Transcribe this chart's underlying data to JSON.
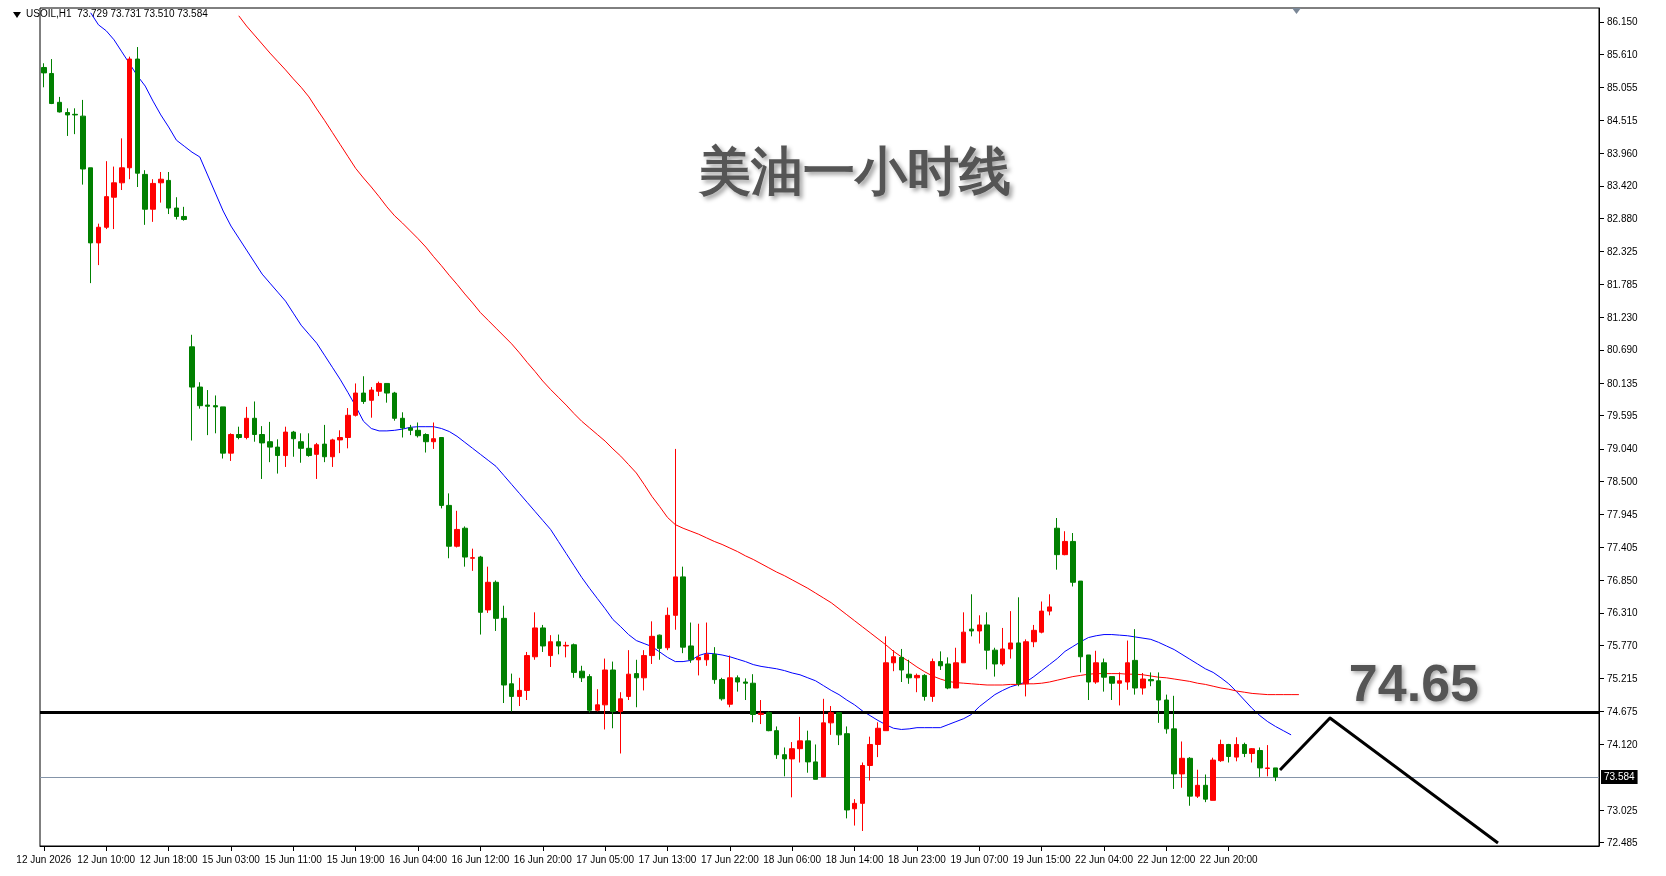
{
  "chart_data": {
    "type": "candlestick",
    "title": "美油一小时线",
    "annotations": [
      "USOIL,H1  73.729 73.731 73.510 73.584"
    ],
    "categories": [
      "12 Jun 2026",
      null,
      null,
      null,
      null,
      null,
      null,
      null,
      "12 Jun 10:00",
      null,
      null,
      null,
      null,
      null,
      null,
      null,
      "12 Jun 18:00",
      null,
      null,
      null,
      null,
      null,
      null,
      null,
      "15 Jun 03:00",
      null,
      null,
      null,
      null,
      null,
      null,
      null,
      "15 Jun 11:00",
      null,
      null,
      null,
      null,
      null,
      null,
      null,
      "15 Jun 19:00",
      null,
      null,
      null,
      null,
      null,
      null,
      null,
      "16 Jun 04:00",
      null,
      null,
      null,
      null,
      null,
      null,
      null,
      "16 Jun 12:00",
      null,
      null,
      null,
      null,
      null,
      null,
      null,
      "16 Jun 20:00",
      null,
      null,
      null,
      null,
      null,
      null,
      null,
      "17 Jun 05:00",
      null,
      null,
      null,
      null,
      null,
      null,
      null,
      "17 Jun 13:00",
      null,
      null,
      null,
      null,
      null,
      null,
      null,
      "17 Jun 22:00",
      null,
      null,
      null,
      null,
      null,
      null,
      null,
      "18 Jun 06:00",
      null,
      null,
      null,
      null,
      null,
      null,
      null,
      "18 Jun 14:00",
      null,
      null,
      null,
      null,
      null,
      null,
      null,
      "18 Jun 23:00",
      null,
      null,
      null,
      null,
      null,
      null,
      null,
      "19 Jun 07:00",
      null,
      null,
      null,
      null,
      null,
      null,
      null,
      "19 Jun 15:00",
      null,
      null,
      null,
      null,
      null,
      null,
      null,
      "22 Jun 04:00",
      null,
      null,
      null,
      null,
      null,
      null,
      null,
      "22 Jun 12:00",
      null,
      null,
      null,
      null,
      null,
      null,
      null,
      "22 Jun 20:00",
      null,
      null,
      null,
      null,
      null,
      null,
      null,
      null,
      null,
      null,
      null,
      null,
      null,
      null,
      null,
      null,
      null,
      null,
      null,
      null,
      null,
      null,
      null,
      null,
      null,
      null,
      null,
      null,
      null,
      null,
      null,
      null,
      null,
      null,
      null,
      null,
      null,
      null,
      null,
      null,
      null,
      null,
      null,
      null,
      null,
      null,
      null
    ],
    "ohlc": [
      [
        85.39,
        85.46,
        85.06,
        85.3
      ],
      [
        85.29,
        85.53,
        84.78,
        84.79
      ],
      [
        84.81,
        84.9,
        84.64,
        84.65
      ],
      [
        84.64,
        84.71,
        84.25,
        84.6
      ],
      [
        84.61,
        84.71,
        84.28,
        84.6
      ],
      [
        84.58,
        84.85,
        83.44,
        83.7
      ],
      [
        83.72,
        83.72,
        81.8,
        82.47
      ],
      [
        82.47,
        82.79,
        82.1,
        82.73
      ],
      [
        82.73,
        83.83,
        82.7,
        83.24
      ],
      [
        83.23,
        83.74,
        82.7,
        83.47
      ],
      [
        83.47,
        84.21,
        83.35,
        83.72
      ],
      [
        83.72,
        85.57,
        83.53,
        85.53
      ],
      [
        85.53,
        85.73,
        83.4,
        83.63
      ],
      [
        83.61,
        83.68,
        82.77,
        83.03
      ],
      [
        83.03,
        83.53,
        82.82,
        83.46
      ],
      [
        83.47,
        83.65,
        83.14,
        83.53
      ],
      [
        83.51,
        83.65,
        82.95,
        83.05
      ],
      [
        83.05,
        83.23,
        82.86,
        82.91
      ],
      [
        82.91,
        83.07,
        82.84,
        82.86
      ],
      [
        80.74,
        80.94,
        79.18,
        80.07
      ],
      [
        80.07,
        80.15,
        79.71,
        79.76
      ],
      [
        79.77,
        80.02,
        79.27,
        79.75
      ],
      [
        79.76,
        79.93,
        79.3,
        79.74
      ],
      [
        79.74,
        79.74,
        78.88,
        78.97
      ],
      [
        78.97,
        79.3,
        78.84,
        79.28
      ],
      [
        79.28,
        79.41,
        79.2,
        79.23
      ],
      [
        79.23,
        79.74,
        79.2,
        79.55
      ],
      [
        79.55,
        79.83,
        79.16,
        79.28
      ],
      [
        79.28,
        79.42,
        78.54,
        79.14
      ],
      [
        79.16,
        79.49,
        78.82,
        79.07
      ],
      [
        79.07,
        79.2,
        78.63,
        78.93
      ],
      [
        78.93,
        79.41,
        78.74,
        79.32
      ],
      [
        79.32,
        79.34,
        78.91,
        79.21
      ],
      [
        79.16,
        79.3,
        78.81,
        79.05
      ],
      [
        79.05,
        79.3,
        78.91,
        78.93
      ],
      [
        78.95,
        79.14,
        78.54,
        79.11
      ],
      [
        79.12,
        79.44,
        78.82,
        78.91
      ],
      [
        78.91,
        79.21,
        78.74,
        79.19
      ],
      [
        79.19,
        79.35,
        78.97,
        79.23
      ],
      [
        79.23,
        79.72,
        79.05,
        79.6
      ],
      [
        79.6,
        80.13,
        79.58,
        79.97
      ],
      [
        79.97,
        80.25,
        79.79,
        79.83
      ],
      [
        79.85,
        80.07,
        79.56,
        80.02
      ],
      [
        80.0,
        80.16,
        79.92,
        80.13
      ],
      [
        80.13,
        80.13,
        79.81,
        79.97
      ],
      [
        79.97,
        79.99,
        79.51,
        79.55
      ],
      [
        79.55,
        79.65,
        79.23,
        79.39
      ],
      [
        79.39,
        79.44,
        79.27,
        79.35
      ],
      [
        79.35,
        79.48,
        79.23,
        79.26
      ],
      [
        79.28,
        79.3,
        78.98,
        79.16
      ],
      [
        79.16,
        79.48,
        79.04,
        79.21
      ],
      [
        79.23,
        79.23,
        78.05,
        78.1
      ],
      [
        78.1,
        78.3,
        77.22,
        77.42
      ],
      [
        77.42,
        78.01,
        77.4,
        77.7
      ],
      [
        77.72,
        77.75,
        77.08,
        77.24
      ],
      [
        77.22,
        77.38,
        77.01,
        77.23
      ],
      [
        77.24,
        77.26,
        75.95,
        76.32
      ],
      [
        76.36,
        77.08,
        76.31,
        76.82
      ],
      [
        76.82,
        76.85,
        76.01,
        76.22
      ],
      [
        76.22,
        76.43,
        74.81,
        75.11
      ],
      [
        75.13,
        75.3,
        74.67,
        74.92
      ],
      [
        74.92,
        75.23,
        74.76,
        75.02
      ],
      [
        75.02,
        75.66,
        74.86,
        75.6
      ],
      [
        75.58,
        76.32,
        75.53,
        76.06
      ],
      [
        76.06,
        76.11,
        75.66,
        75.76
      ],
      [
        75.6,
        75.94,
        75.41,
        75.83
      ],
      [
        75.83,
        75.95,
        75.62,
        75.76
      ],
      [
        75.76,
        75.83,
        75.57,
        75.77
      ],
      [
        75.78,
        75.8,
        75.23,
        75.32
      ],
      [
        75.34,
        75.43,
        75.16,
        75.23
      ],
      [
        75.25,
        75.29,
        74.65,
        74.69
      ],
      [
        74.69,
        75.04,
        74.67,
        74.78
      ],
      [
        74.78,
        75.55,
        74.37,
        75.36
      ],
      [
        75.36,
        75.5,
        74.39,
        74.67
      ],
      [
        74.67,
        74.99,
        73.97,
        74.88
      ],
      [
        74.92,
        75.69,
        74.86,
        75.29
      ],
      [
        75.3,
        75.53,
        74.74,
        75.23
      ],
      [
        75.23,
        75.69,
        75.02,
        75.6
      ],
      [
        75.6,
        76.17,
        75.46,
        75.92
      ],
      [
        75.94,
        75.95,
        75.53,
        75.72
      ],
      [
        75.73,
        76.4,
        75.69,
        76.27
      ],
      [
        76.27,
        79.04,
        76.03,
        76.91
      ],
      [
        76.91,
        77.08,
        75.64,
        75.74
      ],
      [
        75.76,
        76.15,
        75.48,
        75.53
      ],
      [
        75.53,
        76.13,
        75.27,
        75.57
      ],
      [
        75.53,
        76.15,
        75.43,
        75.62
      ],
      [
        75.62,
        75.74,
        75.13,
        75.2
      ],
      [
        75.2,
        75.23,
        74.85,
        74.88
      ],
      [
        74.79,
        75.6,
        74.74,
        75.23
      ],
      [
        75.23,
        75.27,
        75.0,
        75.16
      ],
      [
        75.16,
        75.22,
        74.86,
        75.14
      ],
      [
        75.14,
        75.29,
        74.49,
        74.62
      ],
      [
        74.62,
        74.86,
        74.46,
        74.64
      ],
      [
        74.65,
        74.67,
        74.34,
        74.35
      ],
      [
        74.35,
        74.42,
        73.88,
        73.95
      ],
      [
        73.95,
        74.07,
        73.59,
        73.88
      ],
      [
        73.88,
        74.16,
        73.24,
        74.05
      ],
      [
        74.05,
        74.58,
        73.82,
        74.18
      ],
      [
        74.18,
        74.35,
        73.65,
        73.83
      ],
      [
        73.83,
        74.12,
        73.54,
        73.54
      ],
      [
        73.58,
        74.88,
        73.58,
        74.48
      ],
      [
        74.48,
        74.76,
        74.28,
        74.65
      ],
      [
        74.65,
        74.65,
        74.11,
        74.28
      ],
      [
        74.3,
        74.42,
        72.89,
        73.03
      ],
      [
        73.05,
        73.21,
        72.77,
        73.14
      ],
      [
        73.14,
        73.82,
        72.68,
        73.77
      ],
      [
        73.77,
        74.25,
        73.52,
        74.12
      ],
      [
        74.12,
        74.49,
        73.91,
        74.39
      ],
      [
        74.35,
        75.92,
        74.35,
        75.48
      ],
      [
        75.48,
        75.69,
        75.34,
        75.58
      ],
      [
        75.57,
        75.71,
        75.16,
        75.36
      ],
      [
        75.29,
        75.53,
        75.13,
        75.23
      ],
      [
        75.23,
        75.3,
        74.99,
        75.27
      ],
      [
        75.27,
        75.29,
        74.85,
        74.92
      ],
      [
        74.92,
        75.55,
        74.83,
        75.5
      ],
      [
        75.5,
        75.67,
        75.36,
        75.43
      ],
      [
        75.46,
        75.57,
        75.04,
        75.06
      ],
      [
        75.06,
        75.73,
        75.06,
        75.48
      ],
      [
        75.48,
        76.32,
        75.48,
        75.99
      ],
      [
        76.04,
        76.62,
        75.92,
        76.01
      ],
      [
        76.01,
        76.27,
        75.8,
        76.11
      ],
      [
        76.11,
        76.32,
        75.37,
        75.69
      ],
      [
        75.69,
        75.73,
        75.25,
        75.46
      ],
      [
        75.46,
        76.06,
        75.43,
        75.71
      ],
      [
        75.71,
        76.34,
        75.55,
        75.81
      ],
      [
        75.81,
        76.57,
        75.09,
        75.13
      ],
      [
        75.13,
        75.87,
        74.92,
        75.83
      ],
      [
        75.83,
        76.11,
        75.74,
        76.02
      ],
      [
        75.99,
        76.5,
        75.97,
        76.34
      ],
      [
        76.34,
        76.62,
        76.27,
        76.41
      ],
      [
        77.72,
        77.89,
        77.03,
        77.28
      ],
      [
        77.28,
        77.67,
        77.27,
        77.5
      ],
      [
        77.5,
        77.64,
        76.75,
        76.82
      ],
      [
        76.84,
        76.84,
        75.32,
        75.58
      ],
      [
        75.61,
        75.61,
        74.86,
        75.16
      ],
      [
        75.16,
        75.68,
        75.13,
        75.48
      ],
      [
        75.48,
        75.55,
        75.0,
        75.24
      ],
      [
        75.25,
        75.25,
        74.86,
        75.14
      ],
      [
        75.14,
        75.32,
        74.77,
        75.18
      ],
      [
        75.16,
        75.85,
        75.03,
        75.48
      ],
      [
        75.52,
        76.04,
        74.95,
        75.06
      ],
      [
        75.06,
        75.31,
        74.95,
        75.21
      ],
      [
        75.2,
        75.32,
        75.09,
        75.18
      ],
      [
        75.18,
        75.32,
        74.48,
        74.86
      ],
      [
        74.86,
        74.95,
        74.3,
        74.38
      ],
      [
        74.38,
        74.93,
        73.38,
        73.63
      ],
      [
        73.63,
        74.17,
        73.4,
        73.89
      ],
      [
        73.89,
        73.91,
        73.1,
        73.26
      ],
      [
        73.26,
        73.7,
        73.23,
        73.44
      ],
      [
        73.44,
        73.62,
        73.16,
        73.21
      ],
      [
        73.19,
        73.9,
        73.19,
        73.86
      ],
      [
        73.85,
        74.2,
        73.83,
        74.12
      ],
      [
        74.12,
        74.13,
        73.82,
        73.92
      ],
      [
        73.91,
        74.24,
        73.84,
        74.12
      ],
      [
        74.12,
        74.15,
        73.91,
        73.97
      ],
      [
        73.97,
        74.06,
        73.82,
        74.05
      ],
      [
        74.02,
        74.07,
        73.58,
        73.73
      ],
      [
        73.72,
        74.11,
        73.59,
        73.73
      ],
      [
        73.73,
        73.73,
        73.51,
        73.58
      ],
      null,
      null,
      null,
      null,
      null,
      null,
      null,
      null,
      null,
      null,
      null,
      null,
      null,
      null,
      null,
      null,
      null,
      null,
      null,
      null,
      null,
      null,
      null,
      null,
      null,
      null,
      null,
      null,
      null,
      null,
      null,
      null,
      null,
      null,
      null,
      null,
      null,
      null,
      null,
      null,
      null
    ],
    "colors": [
      "#008000",
      "#008000",
      "#008000",
      "#008000",
      "#008000",
      "#008000",
      "#008000",
      "#ff0000",
      "#ff0000",
      "#ff0000",
      "#ff0000",
      "#ff0000",
      "#008000",
      "#008000",
      "#ff0000",
      "#ff0000",
      "#008000",
      "#008000",
      "#008000",
      "#008000",
      "#008000",
      "#008000",
      "#008000",
      "#008000",
      "#ff0000",
      "#008000",
      "#ff0000",
      "#008000",
      "#008000",
      "#008000",
      "#008000",
      "#ff0000",
      "#008000",
      "#008000",
      "#008000",
      "#ff0000",
      "#008000",
      "#ff0000",
      "#ff0000",
      "#ff0000",
      "#ff0000",
      "#008000",
      "#ff0000",
      "#ff0000",
      "#008000",
      "#008000",
      "#008000",
      "#008000",
      "#008000",
      "#008000",
      "#ff0000",
      "#008000",
      "#008000",
      "#ff0000",
      "#008000",
      "#ff0000",
      "#008000",
      "#ff0000",
      "#008000",
      "#008000",
      "#008000",
      "#ff0000",
      "#ff0000",
      "#ff0000",
      "#008000",
      "#ff0000",
      "#008000",
      "#ff0000",
      "#008000",
      "#008000",
      "#008000",
      "#ff0000",
      "#ff0000",
      "#008000",
      "#ff0000",
      "#ff0000",
      "#008000",
      "#ff0000",
      "#ff0000",
      "#008000",
      "#ff0000",
      "#ff0000",
      "#008000",
      "#008000",
      "#ff0000",
      "#ff0000",
      "#008000",
      "#008000",
      "#ff0000",
      "#008000",
      "#008000",
      "#008000",
      "#ff0000",
      "#008000",
      "#008000",
      "#008000",
      "#ff0000",
      "#ff0000",
      "#008000",
      "#008000",
      "#ff0000",
      "#ff0000",
      "#008000",
      "#008000",
      "#ff0000",
      "#ff0000",
      "#ff0000",
      "#ff0000",
      "#ff0000",
      "#ff0000",
      "#008000",
      "#008000",
      "#ff0000",
      "#008000",
      "#ff0000",
      "#008000",
      "#008000",
      "#ff0000",
      "#ff0000",
      "#008000",
      "#ff0000",
      "#008000",
      "#008000",
      "#ff0000",
      "#ff0000",
      "#008000",
      "#ff0000",
      "#ff0000",
      "#ff0000",
      "#ff0000",
      "#008000",
      "#ff0000",
      "#008000",
      "#008000",
      "#008000",
      "#ff0000",
      "#008000",
      "#008000",
      "#ff0000",
      "#ff0000",
      "#008000",
      "#ff0000",
      "#008000",
      "#008000",
      "#008000",
      "#008000",
      "#ff0000",
      "#008000",
      "#ff0000",
      "#008000",
      "#ff0000",
      "#ff0000",
      "#008000",
      "#ff0000",
      "#008000",
      "#ff0000",
      "#008000",
      "#ff0000",
      "#008000",
      null,
      null,
      null,
      null,
      null,
      null,
      null,
      null,
      null,
      null,
      null,
      null,
      null,
      null,
      null,
      null,
      null,
      null,
      null,
      null,
      null,
      null,
      null,
      null,
      null,
      null,
      null,
      null,
      null,
      null,
      null,
      null,
      null,
      null,
      null,
      null,
      null,
      null,
      null,
      null,
      null
    ],
    "series": [
      {
        "type": "line",
        "color": "#0000ff",
        "values": [
          null,
          null,
          null,
          null,
          null,
          null,
          86.3,
          86.1,
          86.0,
          85.85,
          85.65,
          85.45,
          85.25,
          85.08,
          84.83,
          84.6,
          84.4,
          84.18,
          84.08,
          83.98,
          83.9,
          83.6,
          83.3,
          83.0,
          82.75,
          82.55,
          82.35,
          82.15,
          81.95,
          81.8,
          81.65,
          81.5,
          81.3,
          81.1,
          80.95,
          80.8,
          80.6,
          80.4,
          80.2,
          79.98,
          79.75,
          79.5,
          79.38,
          79.34,
          79.34,
          79.35,
          79.37,
          79.4,
          79.41,
          79.41,
          79.41,
          79.38,
          79.33,
          79.25,
          79.15,
          79.05,
          78.95,
          78.85,
          78.75,
          78.6,
          78.45,
          78.3,
          78.15,
          78.0,
          77.85,
          77.7,
          77.5,
          77.3,
          77.1,
          76.9,
          76.72,
          76.55,
          76.38,
          76.2,
          76.08,
          75.95,
          75.85,
          75.8,
          75.75,
          75.66,
          75.57,
          75.5,
          75.5,
          75.52,
          75.6,
          75.64,
          75.63,
          75.61,
          75.58,
          75.54,
          75.5,
          75.45,
          75.42,
          75.4,
          75.38,
          75.35,
          75.31,
          75.28,
          75.23,
          75.18,
          75.1,
          75.02,
          74.95,
          74.86,
          74.78,
          74.68,
          74.6,
          74.52,
          74.45,
          74.39,
          74.37,
          74.38,
          74.4,
          74.4,
          74.4,
          74.4,
          74.45,
          74.5,
          74.55,
          74.62,
          74.75,
          74.85,
          74.95,
          75.02,
          75.08,
          75.12,
          75.16,
          75.25,
          75.35,
          75.45,
          75.55,
          75.67,
          75.75,
          75.83,
          75.9,
          75.93,
          75.95,
          75.95,
          75.94,
          75.93,
          75.91,
          75.89,
          75.87,
          75.82,
          75.76,
          75.7,
          75.62,
          75.54,
          75.46,
          75.38,
          75.32,
          75.23,
          75.13,
          75.0,
          74.86,
          74.72,
          74.6,
          74.5,
          74.42,
          74.35,
          74.28,
          null,
          null,
          null,
          null,
          null,
          null,
          null,
          null,
          null,
          null,
          null,
          null,
          null,
          null,
          null,
          null,
          null,
          null,
          null,
          null,
          null,
          null,
          null,
          null,
          null,
          null,
          null,
          null,
          null,
          null,
          null,
          null,
          null,
          null,
          null,
          null,
          null,
          null,
          null
        ]
      },
      {
        "type": "line",
        "color": "#ff0000",
        "values": [
          null,
          null,
          null,
          null,
          null,
          null,
          null,
          null,
          null,
          null,
          null,
          null,
          null,
          null,
          null,
          null,
          null,
          null,
          null,
          null,
          null,
          null,
          null,
          null,
          null,
          86.25,
          86.08,
          85.93,
          85.78,
          85.63,
          85.49,
          85.35,
          85.2,
          85.06,
          84.9,
          84.7,
          84.51,
          84.31,
          84.11,
          83.91,
          83.71,
          83.55,
          83.4,
          83.24,
          83.07,
          82.92,
          82.8,
          82.67,
          82.54,
          82.4,
          82.24,
          82.09,
          81.93,
          81.78,
          81.62,
          81.47,
          81.31,
          81.18,
          81.05,
          80.92,
          80.79,
          80.64,
          80.48,
          80.33,
          80.17,
          80.03,
          79.9,
          79.77,
          79.63,
          79.5,
          79.39,
          79.28,
          79.17,
          79.04,
          78.92,
          78.78,
          78.64,
          78.45,
          78.25,
          78.08,
          77.9,
          77.78,
          77.72,
          77.67,
          77.62,
          77.56,
          77.5,
          77.45,
          77.39,
          77.33,
          77.26,
          77.2,
          77.13,
          77.06,
          76.99,
          76.93,
          76.86,
          76.79,
          76.72,
          76.64,
          76.56,
          76.48,
          76.38,
          76.28,
          76.18,
          76.08,
          75.98,
          75.88,
          75.78,
          75.67,
          75.58,
          75.5,
          75.41,
          75.33,
          75.26,
          75.21,
          75.17,
          75.15,
          75.14,
          75.13,
          75.12,
          75.11,
          75.11,
          75.11,
          75.12,
          75.12,
          75.13,
          75.13,
          75.14,
          75.16,
          75.19,
          75.22,
          75.25,
          75.27,
          75.29,
          75.3,
          75.3,
          75.3,
          75.3,
          75.29,
          75.29,
          75.28,
          75.26,
          75.24,
          75.23,
          75.21,
          75.19,
          75.17,
          75.14,
          75.12,
          75.09,
          75.06,
          75.04,
          75.01,
          74.99,
          74.97,
          74.96,
          74.95,
          74.95,
          74.95,
          74.95,
          74.95,
          null,
          null,
          null,
          null,
          null,
          null,
          null,
          null,
          null,
          null,
          null,
          null,
          null,
          null,
          null,
          null,
          null,
          null,
          null,
          null,
          null,
          null,
          null,
          null,
          null,
          null,
          null,
          null,
          null,
          null,
          null,
          null,
          null,
          null,
          null,
          null,
          null,
          null
        ]
      }
    ],
    "ylim": [
      72.43,
      86.38
    ],
    "yticks": [
      {
        "value": 86.15,
        "label": "86.150"
      },
      {
        "value": 85.61,
        "label": "85.610"
      },
      {
        "value": 85.055,
        "label": "85.055"
      },
      {
        "value": 84.515,
        "label": "84.515"
      },
      {
        "value": 83.96,
        "label": "83.960"
      },
      {
        "value": 83.42,
        "label": "83.420"
      },
      {
        "value": 82.88,
        "label": "82.880"
      },
      {
        "value": 82.325,
        "label": "82.325"
      },
      {
        "value": 81.785,
        "label": "81.785"
      },
      {
        "value": 81.23,
        "label": "81.230"
      },
      {
        "value": 80.69,
        "label": "80.690"
      },
      {
        "value": 80.135,
        "label": "80.135"
      },
      {
        "value": 79.595,
        "label": "79.595"
      },
      {
        "value": 79.04,
        "label": "79.040"
      },
      {
        "value": 78.5,
        "label": "78.500"
      },
      {
        "value": 77.945,
        "label": "77.945"
      },
      {
        "value": 77.405,
        "label": "77.405"
      },
      {
        "value": 76.85,
        "label": "76.850"
      },
      {
        "value": 76.31,
        "label": "76.310"
      },
      {
        "value": 75.77,
        "label": "75.770"
      },
      {
        "value": 75.215,
        "label": "75.215"
      },
      {
        "value": 74.675,
        "label": "74.675"
      },
      {
        "value": 74.12,
        "label": "74.120"
      },
      {
        "value": 73.025,
        "label": "73.025"
      },
      {
        "value": 72.485,
        "label": "72.485"
      }
    ],
    "ref_lines": [
      {
        "axis": "y",
        "value": 74.65,
        "label": "74.65",
        "color": "#000000"
      },
      {
        "axis": "y",
        "value": 73.584,
        "label": "73.584",
        "color": "#8494a8"
      }
    ]
  }
}
